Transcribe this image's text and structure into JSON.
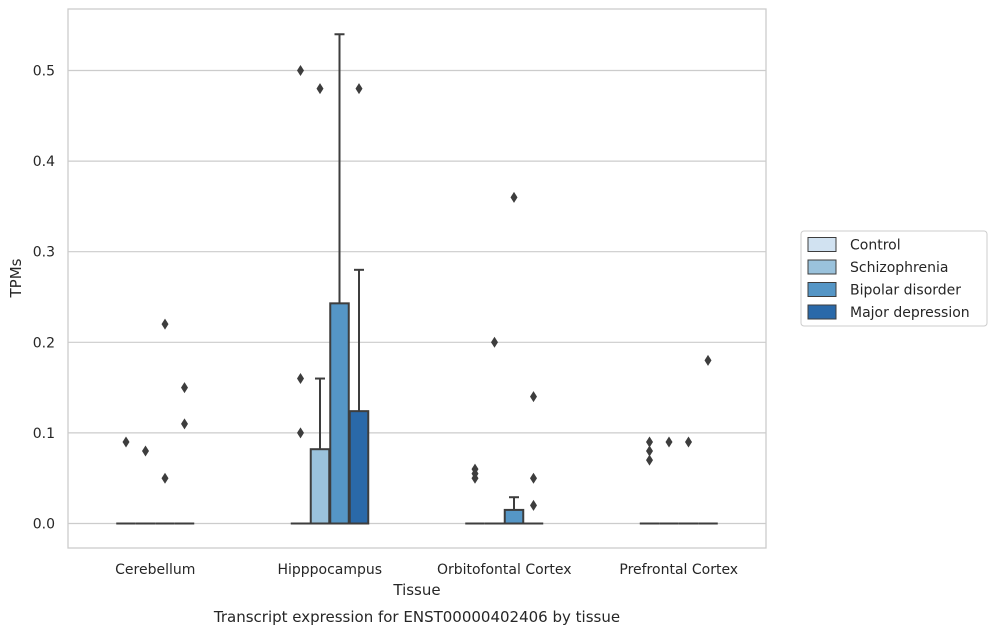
{
  "chart_data": {
    "type": "box",
    "caption": "Transcript expression for ENST00000402406 by tissue",
    "xlabel": "Tissue",
    "ylabel": "TPMs",
    "ylim": [
      -0.026,
      0.567
    ],
    "yticks": [
      "0.0",
      "0.1",
      "0.2",
      "0.3",
      "0.4",
      "0.5"
    ],
    "ytick_values": [
      0.0,
      0.1,
      0.2,
      0.3,
      0.4,
      0.5
    ],
    "grid": "horizontal",
    "legend_position": "right",
    "categories": [
      "Cerebellum",
      "Hipppocampus",
      "Orbitofontal Cortex",
      "Prefrontal Cortex"
    ],
    "series": [
      {
        "name": "Control",
        "color": "#d1e2f1",
        "boxes": [
          {
            "q1": 0,
            "median": 0,
            "q3": 0,
            "whisker_low": 0,
            "whisker_high": 0,
            "outliers": [
              0.09
            ]
          },
          {
            "q1": 0,
            "median": 0,
            "q3": 0,
            "whisker_low": 0,
            "whisker_high": 0,
            "outliers": [
              0.5,
              0.16,
              0.1
            ]
          },
          {
            "q1": 0,
            "median": 0,
            "q3": 0,
            "whisker_low": 0,
            "whisker_high": 0,
            "outliers": [
              0.06,
              0.055,
              0.05
            ]
          },
          {
            "q1": 0,
            "median": 0,
            "q3": 0,
            "whisker_low": 0,
            "whisker_high": 0,
            "outliers": [
              0.09,
              0.08,
              0.07
            ]
          }
        ]
      },
      {
        "name": "Schizophrenia",
        "color": "#9ac2dc",
        "boxes": [
          {
            "q1": 0,
            "median": 0,
            "q3": 0,
            "whisker_low": 0,
            "whisker_high": 0,
            "outliers": [
              0.08
            ]
          },
          {
            "q1": 0,
            "median": 0,
            "q3": 0.082,
            "whisker_low": 0,
            "whisker_high": 0.16,
            "outliers": [
              0.48
            ]
          },
          {
            "q1": 0,
            "median": 0,
            "q3": 0,
            "whisker_low": 0,
            "whisker_high": 0,
            "outliers": [
              0.2
            ]
          },
          {
            "q1": 0,
            "median": 0,
            "q3": 0,
            "whisker_low": 0,
            "whisker_high": 0,
            "outliers": [
              0.09
            ]
          }
        ]
      },
      {
        "name": "Bipolar disorder",
        "color": "#5596c6",
        "boxes": [
          {
            "q1": 0,
            "median": 0,
            "q3": 0,
            "whisker_low": 0,
            "whisker_high": 0,
            "outliers": [
              0.22,
              0.05
            ]
          },
          {
            "q1": 0,
            "median": 0,
            "q3": 0.243,
            "whisker_low": 0,
            "whisker_high": 0.54,
            "outliers": []
          },
          {
            "q1": 0,
            "median": 0,
            "q3": 0.015,
            "whisker_low": 0,
            "whisker_high": 0.029,
            "outliers": [
              0.36
            ]
          },
          {
            "q1": 0,
            "median": 0,
            "q3": 0,
            "whisker_low": 0,
            "whisker_high": 0,
            "outliers": [
              0.09
            ]
          }
        ]
      },
      {
        "name": "Major depression",
        "color": "#2a69a9",
        "boxes": [
          {
            "q1": 0,
            "median": 0,
            "q3": 0,
            "whisker_low": 0,
            "whisker_high": 0,
            "outliers": [
              0.15,
              0.11
            ]
          },
          {
            "q1": 0,
            "median": 0,
            "q3": 0.124,
            "whisker_low": 0,
            "whisker_high": 0.28,
            "outliers": [
              0.48
            ]
          },
          {
            "q1": 0,
            "median": 0,
            "q3": 0,
            "whisker_low": 0,
            "whisker_high": 0,
            "outliers": [
              0.14,
              0.05,
              0.02
            ]
          },
          {
            "q1": 0,
            "median": 0,
            "q3": 0,
            "whisker_low": 0,
            "whisker_high": 0,
            "outliers": [
              0.18
            ]
          }
        ]
      }
    ]
  }
}
